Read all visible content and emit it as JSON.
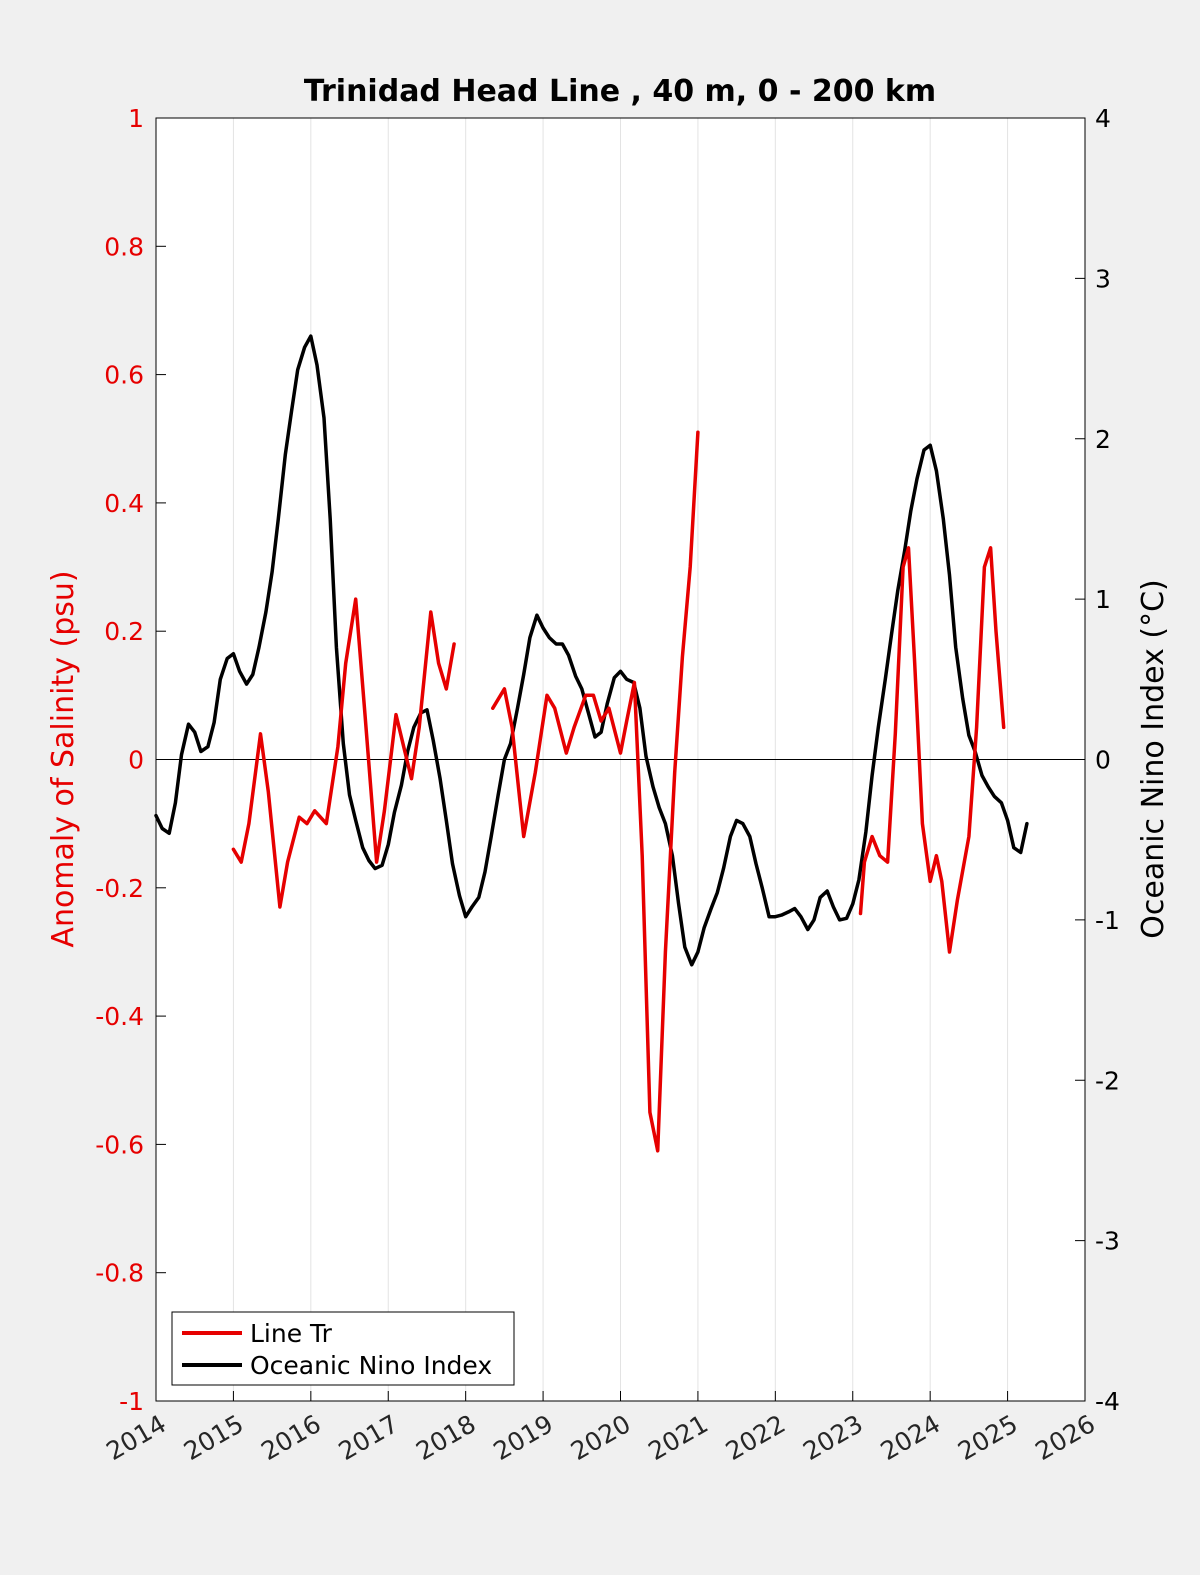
{
  "chart_data": {
    "type": "line",
    "title": "Trinidad Head Line , 40 m, 0 - 200 km",
    "xlabel": "",
    "ylabel_left": "Anomaly of Salinity (psu)",
    "ylabel_right": "Oceanic Nino Index (°C)",
    "xlim": [
      2014,
      2026
    ],
    "ylim_left": [
      -1,
      1
    ],
    "ylim_right": [
      -4,
      4
    ],
    "x_ticks": [
      "2014",
      "2015",
      "2016",
      "2017",
      "2018",
      "2019",
      "2020",
      "2021",
      "2022",
      "2023",
      "2024",
      "2025",
      "2026"
    ],
    "y_ticks_left": [
      "1",
      "0.8",
      "0.6",
      "0.4",
      "0.2",
      "0",
      "-0.2",
      "-0.4",
      "-0.6",
      "-0.8",
      "-1"
    ],
    "y_ticks_right": [
      "4",
      "3",
      "2",
      "1",
      "0",
      "-1",
      "-2",
      "-3",
      "-4"
    ],
    "grid": "vertical",
    "legend_position": "bottom-left",
    "colors": {
      "salinity": "#e60000",
      "oni": "#000000",
      "left_axis": "#e60000",
      "right_axis": "#000000"
    },
    "series": [
      {
        "name": "Line Tr",
        "axis": "left",
        "segments": [
          [
            [
              2015.0,
              -0.14
            ],
            [
              2015.1,
              -0.16
            ],
            [
              2015.2,
              -0.1
            ],
            [
              2015.35,
              0.04
            ],
            [
              2015.45,
              -0.05
            ],
            [
              2015.6,
              -0.23
            ],
            [
              2015.7,
              -0.16
            ],
            [
              2015.85,
              -0.09
            ],
            [
              2015.95,
              -0.1
            ],
            [
              2016.05,
              -0.08
            ],
            [
              2016.2,
              -0.1
            ],
            [
              2016.35,
              0.02
            ],
            [
              2016.45,
              0.15
            ],
            [
              2016.58,
              0.25
            ],
            [
              2016.7,
              0.07
            ],
            [
              2016.85,
              -0.16
            ],
            [
              2016.95,
              -0.08
            ],
            [
              2017.1,
              0.07
            ],
            [
              2017.2,
              0.02
            ],
            [
              2017.3,
              -0.03
            ],
            [
              2017.4,
              0.05
            ],
            [
              2017.55,
              0.23
            ],
            [
              2017.65,
              0.15
            ],
            [
              2017.75,
              0.11
            ],
            [
              2017.85,
              0.18
            ]
          ],
          [
            [
              2018.35,
              0.08
            ],
            [
              2018.5,
              0.11
            ],
            [
              2018.6,
              0.05
            ],
            [
              2018.75,
              -0.12
            ],
            [
              2018.9,
              -0.02
            ],
            [
              2019.05,
              0.1
            ],
            [
              2019.15,
              0.08
            ],
            [
              2019.3,
              0.01
            ],
            [
              2019.4,
              0.05
            ],
            [
              2019.55,
              0.1
            ],
            [
              2019.65,
              0.1
            ],
            [
              2019.75,
              0.06
            ],
            [
              2019.85,
              0.08
            ],
            [
              2020.0,
              0.01
            ],
            [
              2020.08,
              0.06
            ],
            [
              2020.18,
              0.12
            ],
            [
              2020.28,
              -0.15
            ],
            [
              2020.38,
              -0.55
            ],
            [
              2020.48,
              -0.61
            ],
            [
              2020.58,
              -0.3
            ],
            [
              2020.7,
              -0.02
            ],
            [
              2020.8,
              0.16
            ],
            [
              2020.9,
              0.3
            ],
            [
              2021.0,
              0.51
            ]
          ],
          [
            [
              2023.1,
              -0.24
            ],
            [
              2023.15,
              -0.16
            ],
            [
              2023.25,
              -0.12
            ],
            [
              2023.35,
              -0.15
            ],
            [
              2023.45,
              -0.16
            ],
            [
              2023.55,
              0.04
            ],
            [
              2023.65,
              0.3
            ],
            [
              2023.72,
              0.33
            ],
            [
              2023.8,
              0.15
            ],
            [
              2023.9,
              -0.1
            ],
            [
              2024.0,
              -0.19
            ],
            [
              2024.08,
              -0.15
            ],
            [
              2024.15,
              -0.19
            ],
            [
              2024.25,
              -0.3
            ],
            [
              2024.35,
              -0.22
            ],
            [
              2024.5,
              -0.12
            ],
            [
              2024.6,
              0.05
            ],
            [
              2024.7,
              0.3
            ],
            [
              2024.78,
              0.33
            ],
            [
              2024.85,
              0.2
            ],
            [
              2024.95,
              0.05
            ]
          ]
        ]
      },
      {
        "name": "Oceanic Nino Index",
        "axis": "right",
        "segments": [
          [
            [
              2014.0,
              -0.35
            ],
            [
              2014.08,
              -0.43
            ],
            [
              2014.17,
              -0.46
            ],
            [
              2014.25,
              -0.27
            ],
            [
              2014.33,
              0.03
            ],
            [
              2014.42,
              0.22
            ],
            [
              2014.5,
              0.17
            ],
            [
              2014.58,
              0.05
            ],
            [
              2014.67,
              0.08
            ],
            [
              2014.75,
              0.23
            ],
            [
              2014.83,
              0.5
            ],
            [
              2014.92,
              0.63
            ],
            [
              2015.0,
              0.66
            ],
            [
              2015.08,
              0.55
            ],
            [
              2015.17,
              0.47
            ],
            [
              2015.25,
              0.53
            ],
            [
              2015.33,
              0.7
            ],
            [
              2015.42,
              0.92
            ],
            [
              2015.5,
              1.17
            ],
            [
              2015.58,
              1.5
            ],
            [
              2015.67,
              1.9
            ],
            [
              2015.75,
              2.17
            ],
            [
              2015.83,
              2.43
            ],
            [
              2015.92,
              2.57
            ],
            [
              2016.0,
              2.64
            ],
            [
              2016.08,
              2.46
            ],
            [
              2016.17,
              2.13
            ],
            [
              2016.25,
              1.5
            ],
            [
              2016.33,
              0.7
            ],
            [
              2016.42,
              0.1
            ],
            [
              2016.5,
              -0.22
            ],
            [
              2016.58,
              -0.38
            ],
            [
              2016.67,
              -0.55
            ],
            [
              2016.75,
              -0.63
            ],
            [
              2016.83,
              -0.68
            ],
            [
              2016.92,
              -0.66
            ],
            [
              2017.0,
              -0.53
            ],
            [
              2017.08,
              -0.33
            ],
            [
              2017.17,
              -0.16
            ],
            [
              2017.25,
              0.05
            ],
            [
              2017.33,
              0.2
            ],
            [
              2017.42,
              0.29
            ],
            [
              2017.5,
              0.31
            ],
            [
              2017.58,
              0.12
            ],
            [
              2017.67,
              -0.12
            ],
            [
              2017.75,
              -0.38
            ],
            [
              2017.83,
              -0.65
            ],
            [
              2017.92,
              -0.85
            ],
            [
              2018.0,
              -0.98
            ],
            [
              2018.08,
              -0.92
            ],
            [
              2018.17,
              -0.86
            ],
            [
              2018.25,
              -0.7
            ],
            [
              2018.33,
              -0.48
            ],
            [
              2018.42,
              -0.22
            ],
            [
              2018.5,
              0.0
            ],
            [
              2018.58,
              0.1
            ],
            [
              2018.67,
              0.32
            ],
            [
              2018.75,
              0.53
            ],
            [
              2018.83,
              0.76
            ],
            [
              2018.92,
              0.9
            ],
            [
              2019.0,
              0.82
            ],
            [
              2019.08,
              0.76
            ],
            [
              2019.17,
              0.72
            ],
            [
              2019.25,
              0.72
            ],
            [
              2019.33,
              0.65
            ],
            [
              2019.42,
              0.52
            ],
            [
              2019.5,
              0.44
            ],
            [
              2019.58,
              0.3
            ],
            [
              2019.67,
              0.14
            ],
            [
              2019.75,
              0.17
            ],
            [
              2019.83,
              0.35
            ],
            [
              2019.92,
              0.51
            ],
            [
              2020.0,
              0.55
            ],
            [
              2020.08,
              0.5
            ],
            [
              2020.17,
              0.48
            ],
            [
              2020.25,
              0.32
            ],
            [
              2020.33,
              0.02
            ],
            [
              2020.42,
              -0.17
            ],
            [
              2020.5,
              -0.3
            ],
            [
              2020.58,
              -0.4
            ],
            [
              2020.67,
              -0.6
            ],
            [
              2020.75,
              -0.9
            ],
            [
              2020.83,
              -1.17
            ],
            [
              2020.92,
              -1.28
            ],
            [
              2021.0,
              -1.2
            ],
            [
              2021.08,
              -1.05
            ],
            [
              2021.17,
              -0.93
            ],
            [
              2021.25,
              -0.83
            ],
            [
              2021.33,
              -0.68
            ],
            [
              2021.42,
              -0.48
            ],
            [
              2021.5,
              -0.38
            ],
            [
              2021.58,
              -0.4
            ],
            [
              2021.67,
              -0.48
            ],
            [
              2021.75,
              -0.65
            ],
            [
              2021.83,
              -0.8
            ],
            [
              2021.92,
              -0.98
            ],
            [
              2022.0,
              -0.98
            ],
            [
              2022.08,
              -0.97
            ],
            [
              2022.17,
              -0.95
            ],
            [
              2022.25,
              -0.93
            ],
            [
              2022.33,
              -0.98
            ],
            [
              2022.42,
              -1.06
            ],
            [
              2022.5,
              -1.0
            ],
            [
              2022.58,
              -0.86
            ],
            [
              2022.67,
              -0.82
            ],
            [
              2022.75,
              -0.92
            ],
            [
              2022.83,
              -1.0
            ],
            [
              2022.92,
              -0.99
            ],
            [
              2023.0,
              -0.9
            ],
            [
              2023.08,
              -0.75
            ],
            [
              2023.17,
              -0.45
            ],
            [
              2023.25,
              -0.1
            ],
            [
              2023.33,
              0.2
            ],
            [
              2023.42,
              0.5
            ],
            [
              2023.5,
              0.78
            ],
            [
              2023.58,
              1.05
            ],
            [
              2023.67,
              1.3
            ],
            [
              2023.75,
              1.55
            ],
            [
              2023.83,
              1.75
            ],
            [
              2023.92,
              1.93
            ],
            [
              2024.0,
              1.96
            ],
            [
              2024.08,
              1.8
            ],
            [
              2024.17,
              1.5
            ],
            [
              2024.25,
              1.15
            ],
            [
              2024.33,
              0.7
            ],
            [
              2024.42,
              0.38
            ],
            [
              2024.5,
              0.15
            ],
            [
              2024.58,
              0.05
            ],
            [
              2024.67,
              -0.1
            ],
            [
              2024.75,
              -0.17
            ],
            [
              2024.83,
              -0.23
            ],
            [
              2024.92,
              -0.27
            ],
            [
              2025.0,
              -0.38
            ],
            [
              2025.08,
              -0.55
            ],
            [
              2025.17,
              -0.58
            ],
            [
              2025.25,
              -0.4
            ]
          ]
        ]
      }
    ]
  }
}
